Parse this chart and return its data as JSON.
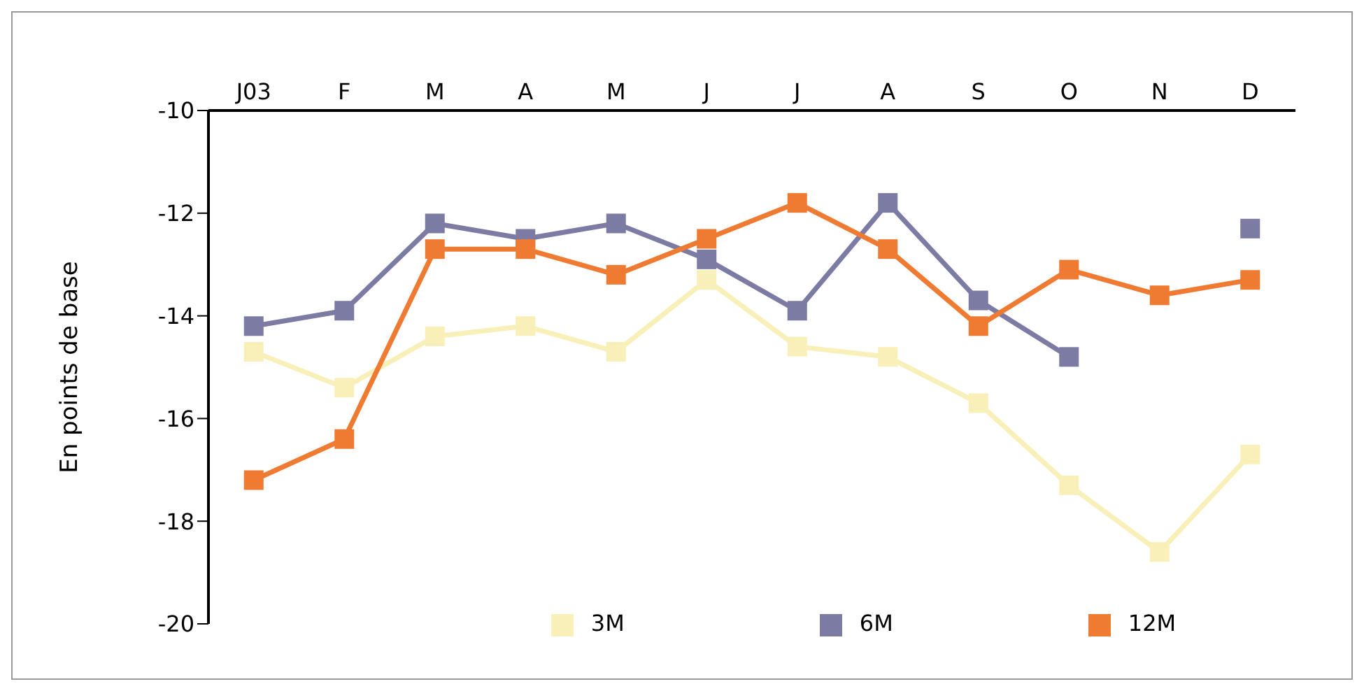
{
  "chart_data": {
    "type": "line",
    "ylabel": "En points de base",
    "categories": [
      "J03",
      "F",
      "M",
      "A",
      "M",
      "J",
      "J",
      "A",
      "S",
      "O",
      "N",
      "D"
    ],
    "ylim": [
      -20,
      -10
    ],
    "yticks": [
      -20,
      -18,
      -16,
      -14,
      -12,
      -10
    ],
    "grid": false,
    "legend": "bottom",
    "marker": "square",
    "line_style": "solid",
    "series": [
      {
        "name": "3M",
        "color": "#f8f0b8",
        "values": [
          -14.7,
          -15.4,
          -14.4,
          -14.2,
          -14.7,
          -13.3,
          -14.6,
          -14.8,
          -15.7,
          -17.3,
          -18.6,
          -16.7
        ]
      },
      {
        "name": "6M",
        "color": "#7b7ba3",
        "values": [
          -14.2,
          -13.9,
          -12.2,
          -12.5,
          -12.2,
          -12.9,
          -13.9,
          -11.8,
          -13.7,
          -14.8,
          null,
          -12.3
        ]
      },
      {
        "name": "12M",
        "color": "#ef7b32",
        "values": [
          -17.2,
          -16.4,
          -12.7,
          -12.7,
          -13.2,
          -12.5,
          -11.8,
          -12.7,
          -14.2,
          -13.1,
          -13.6,
          -13.3
        ]
      }
    ]
  }
}
